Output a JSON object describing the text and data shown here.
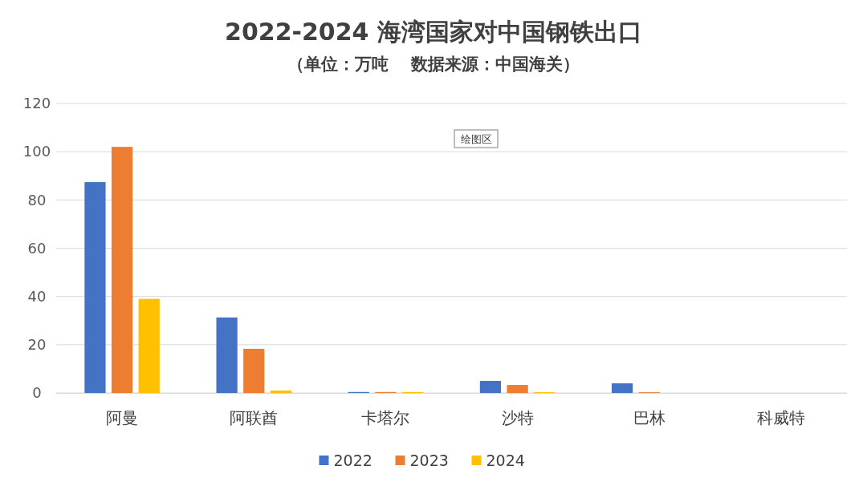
{
  "chart_data": {
    "type": "bar",
    "title": "2022-2024 海湾国家对中国钢铁出口",
    "subtitle": "（单位：万吨　 数据来源：中国海关）",
    "categories": [
      "阿曼",
      "阿联酋",
      "卡塔尔",
      "沙特",
      "巴林",
      "科威特"
    ],
    "series": [
      {
        "name": "2022",
        "color": "#4472c4",
        "values": [
          87.4,
          31.3,
          0.4,
          5,
          4,
          null
        ]
      },
      {
        "name": "2023",
        "color": "#ed7d31",
        "values": [
          102,
          18.3,
          0.4,
          3.3,
          0.3,
          null
        ]
      },
      {
        "name": "2024",
        "color": "#ffc000",
        "values": [
          39,
          1,
          0.4,
          0.3,
          null,
          null
        ]
      }
    ],
    "ylim": [
      0,
      120
    ],
    "yticks": [
      0,
      20,
      40,
      60,
      80,
      100,
      120
    ],
    "grid": "y",
    "legend": "bottom",
    "annotations": [
      "绘图区"
    ]
  }
}
